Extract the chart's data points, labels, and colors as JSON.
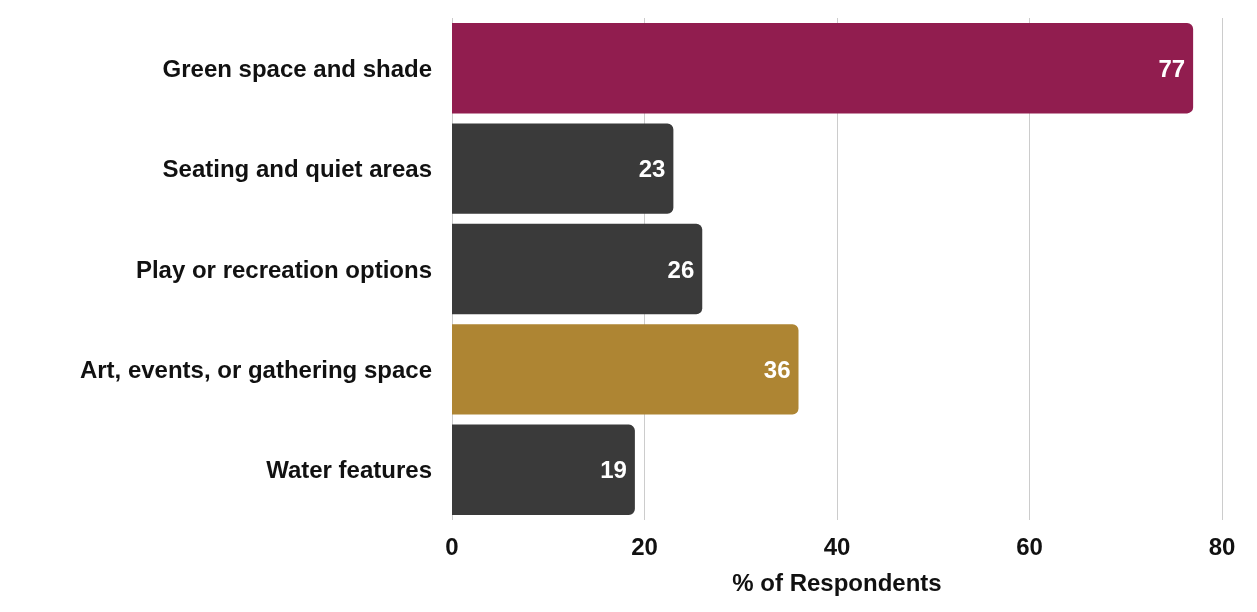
{
  "chart_data": {
    "type": "bar",
    "orientation": "horizontal",
    "xlabel": "% of Respondents",
    "categories": [
      "Green space and shade",
      "Seating and quiet areas",
      "Play or recreation options",
      "Art, events, or gathering space",
      "Water features"
    ],
    "values": [
      77,
      23,
      26,
      36,
      19
    ],
    "colors": [
      "#911d4f",
      "#3a3a3a",
      "#3a3a3a",
      "#ae8533",
      "#3a3a3a"
    ],
    "xlim": [
      0,
      80
    ],
    "xticks": [
      0,
      20,
      40,
      60,
      80
    ],
    "grid": "x",
    "data_labels": true
  }
}
